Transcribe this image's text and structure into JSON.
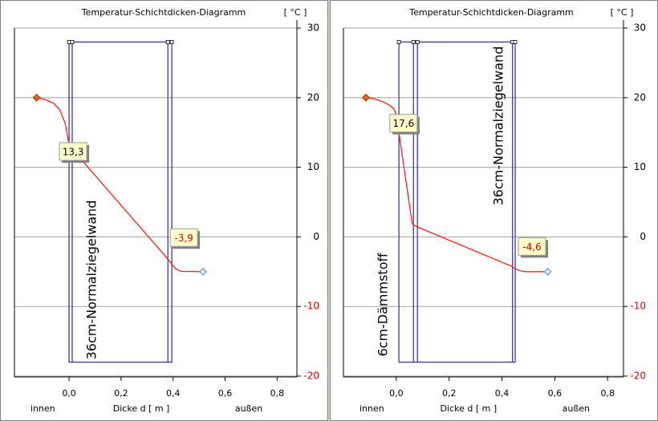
{
  "chart_data": [
    {
      "type": "line",
      "title": "Temperatur-Schichtdicken-Diagramm",
      "unit_label": "[ °C ]",
      "xlabel": "Dicke d [ m ]",
      "inside_label": "innen",
      "outside_label": "außen",
      "xlim": [
        -0.21,
        0.876
      ],
      "xticks": [
        {
          "value": 0,
          "label": "0,0"
        },
        {
          "value": 0.2,
          "label": "0,2"
        },
        {
          "value": 0.4,
          "label": "0,4"
        },
        {
          "value": 0.6,
          "label": "0,6"
        },
        {
          "value": 0.8,
          "label": "0,8"
        }
      ],
      "ylim": [
        -20,
        30
      ],
      "yticks": [
        30,
        20,
        10,
        0,
        -10,
        -20
      ],
      "grid": true,
      "negative_tick_color": "#e00000",
      "layer_edges": [
        0,
        0.012,
        0.38,
        0.395
      ],
      "layer_ylim": [
        -18,
        28
      ],
      "layer_color": "#2a2a9a",
      "layer_labels": [
        "36cm-Normalziegelwand"
      ],
      "series": [
        {
          "color": "#ff2020",
          "x": [
            -0.125,
            -0.09,
            -0.06,
            -0.035,
            -0.015,
            0,
            0.012,
            0.38,
            0.395,
            0.41,
            0.43,
            0.515
          ],
          "values": [
            20,
            19.7,
            19.2,
            18.2,
            16.3,
            13.3,
            12.6,
            -3.2,
            -3.9,
            -4.6,
            -4.95,
            -5
          ],
          "value_labels": [
            null,
            null,
            null,
            null,
            null,
            "13,3",
            null,
            null,
            "-3,9",
            null,
            null,
            null
          ]
        }
      ]
    },
    {
      "type": "line",
      "title": "Temperatur-Schichtdicken-Diagramm",
      "unit_label": "[ °C ]",
      "xlabel": "Dicke d [ m ]",
      "inside_label": "innen",
      "outside_label": "außen",
      "xlim": [
        -0.2,
        0.86
      ],
      "xticks": [
        {
          "value": 0,
          "label": "0,0"
        },
        {
          "value": 0.2,
          "label": "0,2"
        },
        {
          "value": 0.4,
          "label": "0,4"
        },
        {
          "value": 0.6,
          "label": "0,6"
        },
        {
          "value": 0.8,
          "label": "0,8"
        }
      ],
      "ylim": [
        -20,
        30
      ],
      "yticks": [
        30,
        20,
        10,
        0,
        -10,
        -20
      ],
      "grid": true,
      "negative_tick_color": "#e00000",
      "layer_edges": [
        0.01,
        0.065,
        0.08,
        0.44,
        0.45
      ],
      "layer_ylim": [
        -18,
        28
      ],
      "layer_color": "#2a2a9a",
      "layer_labels": [
        "6cm-Dämmstoff",
        "36cm-Normalziegelwand"
      ],
      "series": [
        {
          "color": "#ff2020",
          "x": [
            -0.115,
            -0.08,
            -0.05,
            -0.025,
            -0.01,
            0,
            0.06,
            0.075,
            0.435,
            0.45,
            0.47,
            0.49,
            0.573
          ],
          "values": [
            20,
            19.8,
            19.4,
            18.9,
            18.4,
            17.6,
            1.9,
            1.5,
            -4.2,
            -4.6,
            -4.9,
            -5,
            -5
          ],
          "value_labels": [
            null,
            null,
            null,
            null,
            null,
            "17,6",
            null,
            null,
            null,
            "-4,6",
            null,
            null,
            null
          ]
        }
      ]
    }
  ]
}
